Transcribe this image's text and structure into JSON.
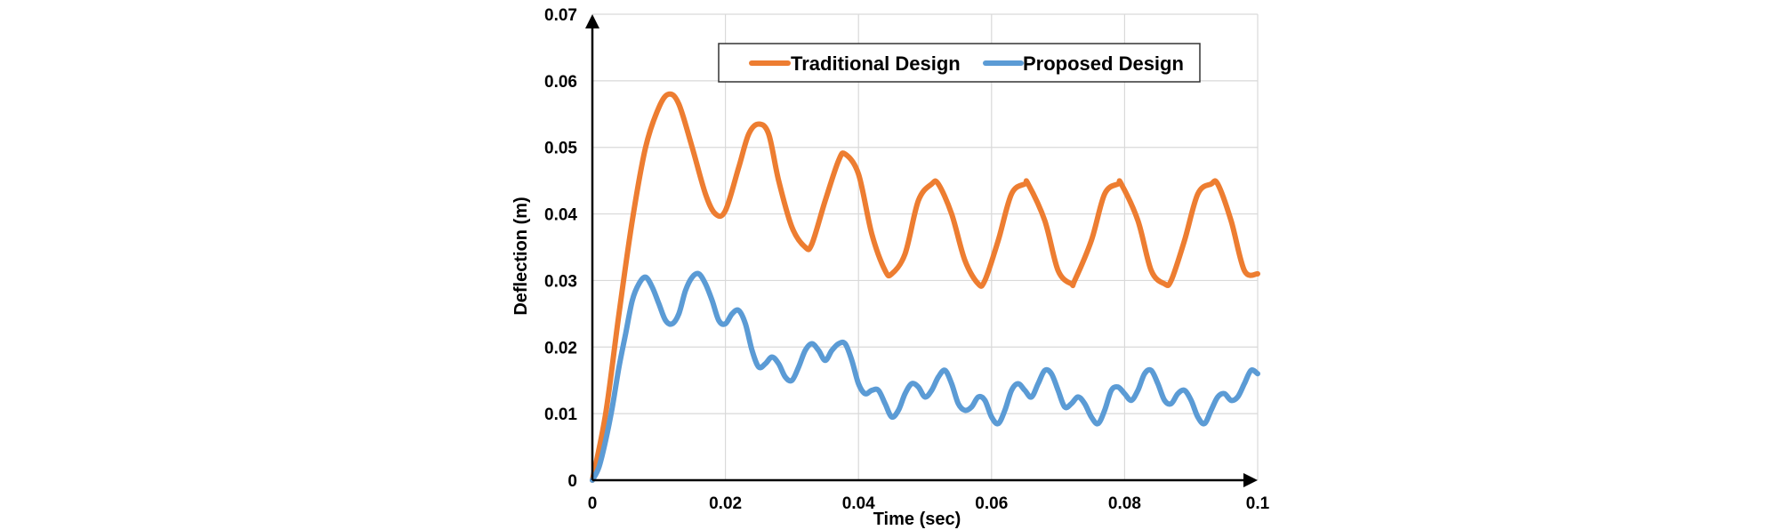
{
  "chart_data": {
    "type": "line",
    "title": "",
    "xlabel": "Time (sec)",
    "ylabel": "Deflection (m)",
    "xlim": [
      0,
      0.1
    ],
    "ylim": [
      0,
      0.07
    ],
    "xticks": [
      0,
      0.02,
      0.04,
      0.06,
      0.08,
      0.1
    ],
    "xtick_labels": [
      "0",
      "0.02",
      "0.04",
      "0.06",
      "0.08",
      "0.1"
    ],
    "yticks": [
      0,
      0.01,
      0.02,
      0.03,
      0.04,
      0.05,
      0.06,
      0.07
    ],
    "ytick_labels": [
      "0",
      "0.01",
      "0.02",
      "0.03",
      "0.04",
      "0.05",
      "0.06",
      "0.07"
    ],
    "grid": true,
    "legend_position": "top",
    "series": [
      {
        "name": "Traditional Design",
        "color": "#ED7D31",
        "x": [
          0,
          0.002,
          0.004,
          0.006,
          0.008,
          0.01,
          0.0115,
          0.013,
          0.015,
          0.017,
          0.0185,
          0.02,
          0.022,
          0.0235,
          0.025,
          0.0265,
          0.028,
          0.03,
          0.032,
          0.033,
          0.035,
          0.037,
          0.038,
          0.04,
          0.042,
          0.044,
          0.045,
          0.047,
          0.049,
          0.051,
          0.052,
          0.054,
          0.056,
          0.058,
          0.059,
          0.061,
          0.063,
          0.065,
          0.0655,
          0.068,
          0.07,
          0.072,
          0.0725,
          0.075,
          0.077,
          0.079,
          0.0795,
          0.082,
          0.084,
          0.086,
          0.087,
          0.089,
          0.091,
          0.093,
          0.094,
          0.096,
          0.098,
          0.1
        ],
        "y": [
          0,
          0.01,
          0.025,
          0.039,
          0.05,
          0.056,
          0.058,
          0.0565,
          0.05,
          0.043,
          0.04,
          0.0405,
          0.047,
          0.052,
          0.0535,
          0.052,
          0.045,
          0.038,
          0.035,
          0.0355,
          0.042,
          0.048,
          0.049,
          0.046,
          0.037,
          0.0315,
          0.031,
          0.034,
          0.042,
          0.0445,
          0.0445,
          0.04,
          0.033,
          0.0295,
          0.03,
          0.036,
          0.043,
          0.0445,
          0.0445,
          0.039,
          0.0315,
          0.0295,
          0.03,
          0.036,
          0.043,
          0.0445,
          0.0445,
          0.039,
          0.0315,
          0.0295,
          0.03,
          0.036,
          0.043,
          0.0445,
          0.0445,
          0.039,
          0.0315,
          0.031
        ]
      },
      {
        "name": "Proposed Design",
        "color": "#5B9BD5",
        "x": [
          0,
          0.001,
          0.002,
          0.003,
          0.004,
          0.005,
          0.006,
          0.007,
          0.008,
          0.009,
          0.01,
          0.011,
          0.012,
          0.013,
          0.014,
          0.015,
          0.016,
          0.017,
          0.018,
          0.019,
          0.02,
          0.021,
          0.022,
          0.023,
          0.024,
          0.025,
          0.026,
          0.027,
          0.028,
          0.029,
          0.03,
          0.031,
          0.032,
          0.033,
          0.034,
          0.035,
          0.036,
          0.037,
          0.038,
          0.039,
          0.04,
          0.041,
          0.042,
          0.043,
          0.044,
          0.045,
          0.046,
          0.047,
          0.048,
          0.049,
          0.05,
          0.051,
          0.052,
          0.053,
          0.054,
          0.055,
          0.056,
          0.057,
          0.058,
          0.059,
          0.06,
          0.061,
          0.062,
          0.063,
          0.064,
          0.065,
          0.066,
          0.067,
          0.068,
          0.069,
          0.07,
          0.071,
          0.072,
          0.073,
          0.074,
          0.075,
          0.076,
          0.077,
          0.078,
          0.079,
          0.08,
          0.081,
          0.082,
          0.083,
          0.084,
          0.085,
          0.086,
          0.087,
          0.088,
          0.089,
          0.09,
          0.091,
          0.092,
          0.093,
          0.094,
          0.095,
          0.096,
          0.097,
          0.098,
          0.099,
          0.1
        ],
        "y": [
          0,
          0.002,
          0.006,
          0.011,
          0.017,
          0.022,
          0.027,
          0.0295,
          0.0305,
          0.029,
          0.0265,
          0.024,
          0.0235,
          0.025,
          0.0285,
          0.0305,
          0.031,
          0.0295,
          0.027,
          0.024,
          0.0235,
          0.025,
          0.0255,
          0.0235,
          0.0195,
          0.017,
          0.0175,
          0.0185,
          0.0175,
          0.0155,
          0.015,
          0.017,
          0.0195,
          0.0205,
          0.0195,
          0.018,
          0.0195,
          0.0205,
          0.0205,
          0.018,
          0.0145,
          0.013,
          0.0135,
          0.0135,
          0.0115,
          0.0095,
          0.0105,
          0.013,
          0.0145,
          0.014,
          0.0125,
          0.0135,
          0.0155,
          0.0165,
          0.0145,
          0.0115,
          0.0105,
          0.011,
          0.0125,
          0.012,
          0.0095,
          0.0085,
          0.0105,
          0.0135,
          0.0145,
          0.0135,
          0.0125,
          0.0145,
          0.0165,
          0.016,
          0.0135,
          0.011,
          0.0115,
          0.0125,
          0.0115,
          0.0095,
          0.0085,
          0.0105,
          0.0135,
          0.014,
          0.013,
          0.012,
          0.0135,
          0.016,
          0.0165,
          0.0145,
          0.012,
          0.0115,
          0.013,
          0.0135,
          0.012,
          0.0095,
          0.0085,
          0.0105,
          0.0125,
          0.013,
          0.012,
          0.0125,
          0.0145,
          0.0165,
          0.016
        ]
      }
    ]
  }
}
